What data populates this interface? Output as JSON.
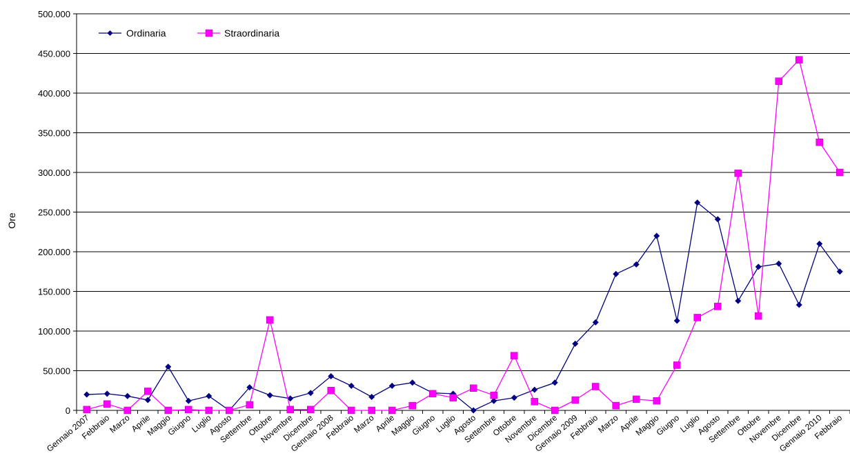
{
  "chart_data": {
    "type": "line",
    "title": "",
    "xlabel": "",
    "ylabel": "Ore",
    "ylim": [
      0,
      500000
    ],
    "yticks": [
      "0",
      "50.000",
      "100.000",
      "150.000",
      "200.000",
      "250.000",
      "300.000",
      "350.000",
      "400.000",
      "450.000",
      "500.000"
    ],
    "grid": "horizontal",
    "legend_position": "top-left",
    "categories": [
      "Gennaio 2007",
      "Febbraio",
      "Marzo",
      "Aprile",
      "Maggio",
      "Giugno",
      "Luglio",
      "Agosto",
      "Settembre",
      "Ottobre",
      "Novembre",
      "Dicembre",
      "Gennaio 2008",
      "Febbraio",
      "Marzo",
      "Aprile",
      "Maggio",
      "Giugno",
      "Luglio",
      "Agosto",
      "Settembre",
      "Ottobre",
      "Novembre",
      "Dicembre",
      "Gennaio 2009",
      "Febbraio",
      "Marzo",
      "Aprile",
      "Maggio",
      "Giugno",
      "Luglio",
      "Agosto",
      "Settembre",
      "Ottobre",
      "Novembre",
      "Dicembre",
      "Gennaio 2010",
      "Febbraio"
    ],
    "series": [
      {
        "name": "Ordinaria",
        "color": "#000080",
        "marker": "diamond",
        "values": [
          20000,
          21000,
          18000,
          13000,
          55000,
          12000,
          18000,
          0,
          29000,
          19000,
          15000,
          22000,
          43000,
          31000,
          17000,
          31000,
          35000,
          22000,
          21000,
          0,
          12000,
          16000,
          26000,
          35000,
          84000,
          111000,
          172000,
          184000,
          220000,
          113000,
          262000,
          241000,
          138000,
          181000,
          185000,
          133000,
          210000,
          175000
        ]
      },
      {
        "name": "Straordinaria",
        "color": "#FF00FF",
        "marker": "square",
        "values": [
          1000,
          8000,
          0,
          24000,
          0,
          1000,
          0,
          0,
          7000,
          114000,
          1000,
          1000,
          25000,
          0,
          0,
          0,
          6000,
          21000,
          16000,
          28000,
          19000,
          69000,
          11000,
          0,
          13000,
          30000,
          6000,
          14000,
          12000,
          57000,
          117000,
          131000,
          299000,
          119000,
          415000,
          442000,
          338000,
          300000
        ]
      }
    ]
  }
}
